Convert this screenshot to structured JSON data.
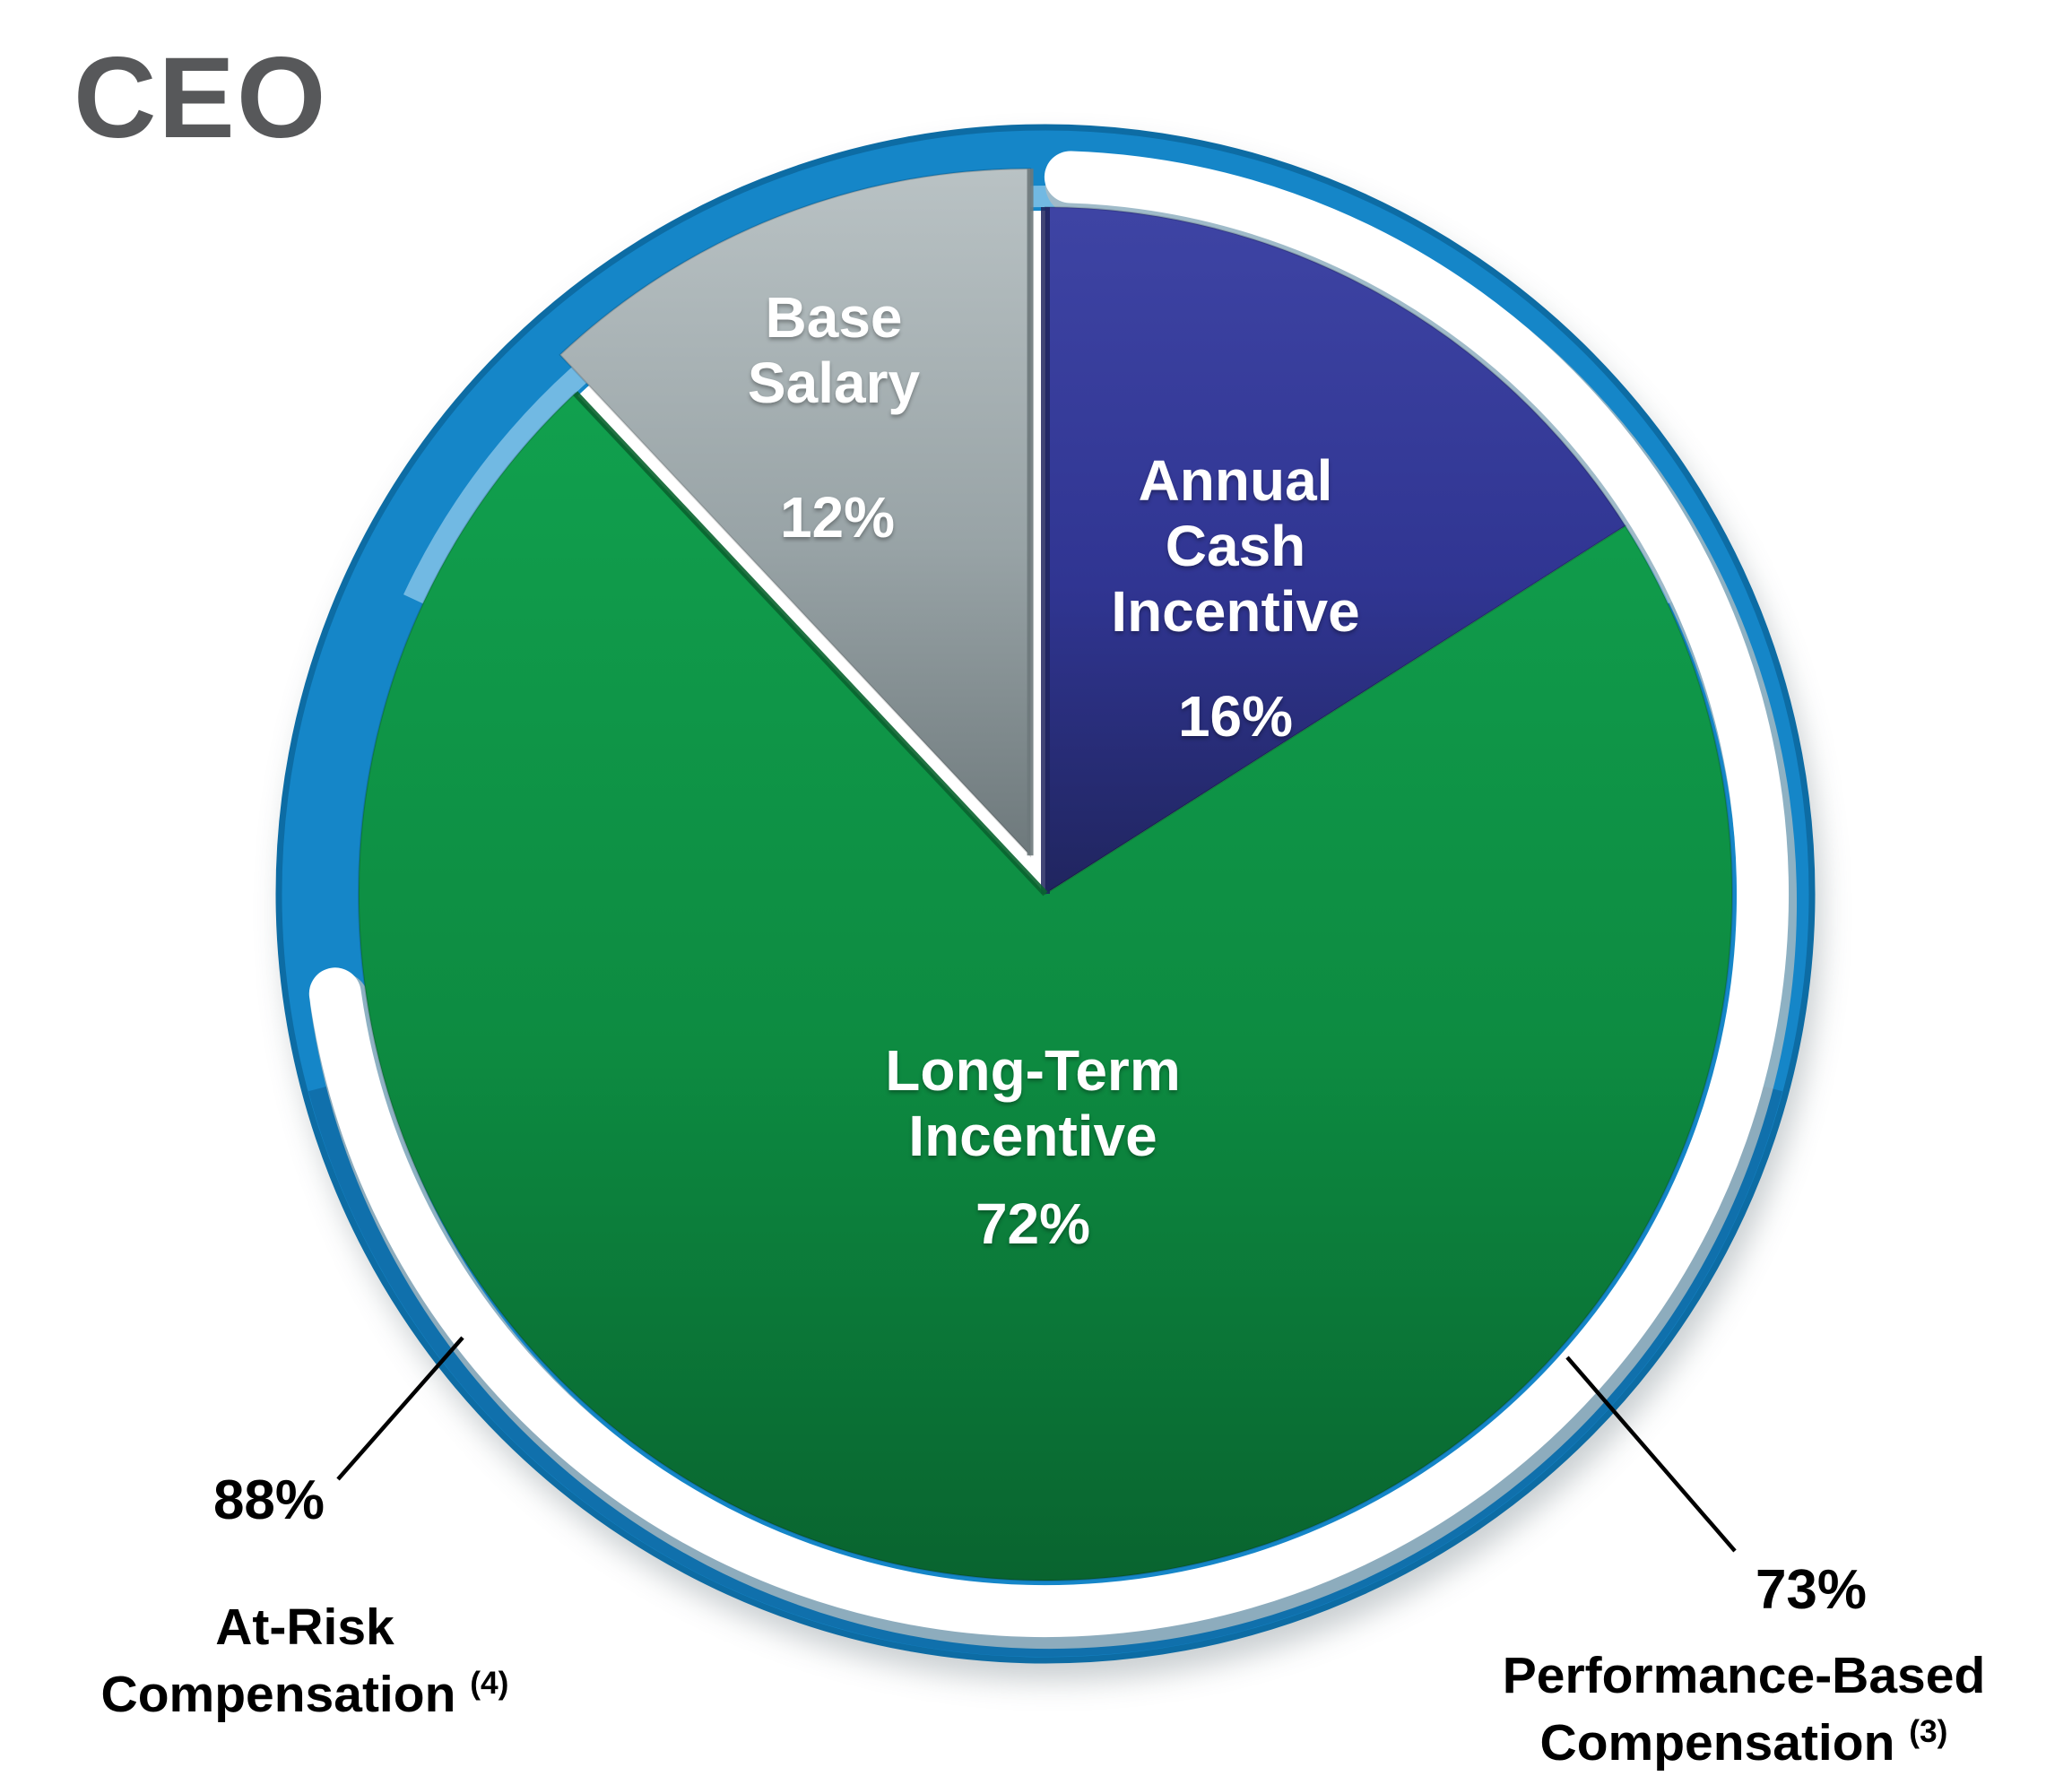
{
  "chart_data": {
    "type": "pie",
    "title": "CEO",
    "units": "percent",
    "slices": [
      {
        "label": "Annual Cash Incentive",
        "pct_label": "16%",
        "value": 16,
        "color": "#303592",
        "color_light": "#3E44A4",
        "color_dark": "#20255F",
        "text_color": "#FFFFFF"
      },
      {
        "label": "Long-Term Incentive",
        "pct_label": "72%",
        "value": 72,
        "color": "#0D8B41",
        "color_light": "#11A04E",
        "color_dark": "#09642F",
        "text_color": "#FFFFFF"
      },
      {
        "label": "Base Salary",
        "pct_label": "12%",
        "value": 12,
        "color": "#98A3A6",
        "color_light": "#B9C2C4",
        "color_dark": "#6E797C",
        "text_color": "#FFFFFF",
        "exploded": true
      }
    ],
    "ring": {
      "color": "#1586C8",
      "color_dark": "#0D6CA4",
      "color_light": "#5FB4E4"
    },
    "highlight_arc": {
      "color": "#FFFFFF",
      "start_pct": 0,
      "end_pct": 72
    },
    "annotations": [
      {
        "value": "88%",
        "label": "At-Risk Compensation",
        "footnote": "(4)",
        "side": "left"
      },
      {
        "value": "73%",
        "label": "Performance-Based Compensation",
        "footnote": "(3)",
        "side": "right"
      }
    ]
  }
}
